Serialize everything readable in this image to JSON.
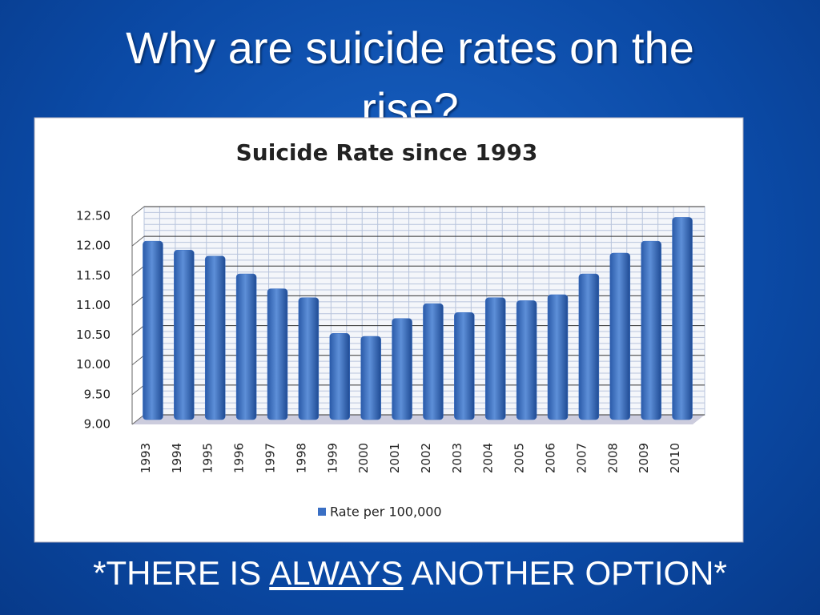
{
  "slide": {
    "title": "Why are suicide rates on the rise?",
    "footer": [
      "*THERE IS",
      "ALWAYS",
      "ANOTHER OPTION*"
    ]
  },
  "chart_data": {
    "type": "bar",
    "title": "Suicide Rate since 1993",
    "categories": [
      "1993",
      "1994",
      "1995",
      "1996",
      "1997",
      "1998",
      "1999",
      "2000",
      "2001",
      "2002",
      "2003",
      "2004",
      "2005",
      "2006",
      "2007",
      "2008",
      "2009",
      "2010"
    ],
    "series": [
      {
        "name": "Rate per 100,000",
        "color": "#3a6fc4",
        "values": [
          12.0,
          11.85,
          11.75,
          11.45,
          11.2,
          11.05,
          10.45,
          10.4,
          10.7,
          10.95,
          10.8,
          11.05,
          11.0,
          11.1,
          11.45,
          11.8,
          12.0,
          12.4
        ]
      }
    ],
    "ylim": [
      9,
      12.5
    ],
    "yticks": [
      {
        "value": 9,
        "label": "9.00"
      },
      {
        "value": 9.5,
        "label": "9.50"
      },
      {
        "value": 10,
        "label": "10.00"
      },
      {
        "value": 10.5,
        "label": "10.50"
      },
      {
        "value": 11,
        "label": "11.00"
      },
      {
        "value": 11.5,
        "label": "11.50"
      },
      {
        "value": 12,
        "label": "12.00"
      },
      {
        "value": 12.5,
        "label": "12.50"
      }
    ],
    "grid": true,
    "legend": "bottom"
  }
}
